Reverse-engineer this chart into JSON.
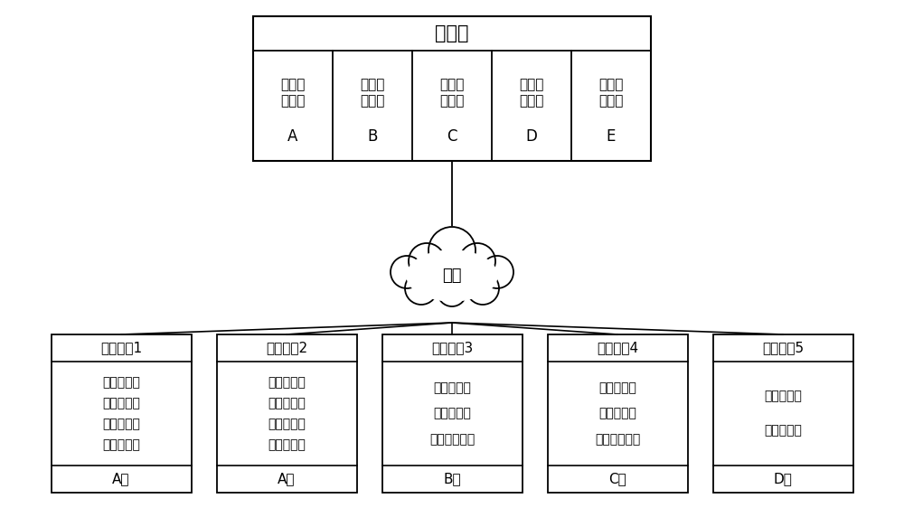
{
  "bg_color": "#ffffff",
  "line_color": "#000000",
  "box_fill": "#ffffff",
  "server_label": "服务器",
  "server_files": [
    {
      "lines": [
        "系统镜",
        "像文件",
        "A"
      ]
    },
    {
      "lines": [
        "系统镜",
        "像文件",
        "B"
      ]
    },
    {
      "lines": [
        "系统镜",
        "像文件",
        "C"
      ]
    },
    {
      "lines": [
        "系统镜",
        "像文件",
        "D"
      ]
    },
    {
      "lines": [
        "系统镜",
        "像文件",
        "E"
      ]
    }
  ],
  "network_label": "网络",
  "terminals": [
    {
      "title": "智能终端1",
      "modules": [
        "身份证模块",
        "诊疗卡模块",
        "银行卡模块",
        "医保卡模块"
      ],
      "type_label": "A型"
    },
    {
      "title": "智能终端2",
      "modules": [
        "身份证模块",
        "诊疗卡模块",
        "银行卡模块",
        "医保卡模块"
      ],
      "type_label": "A型"
    },
    {
      "title": "智能终端3",
      "modules": [
        "身份证模块",
        "诊疗卡模块",
        "胶片打印模块"
      ],
      "type_label": "B型"
    },
    {
      "title": "智能终端4",
      "modules": [
        "身份证模块",
        "诊疗卡模块",
        "纸张打印模块"
      ],
      "type_label": "C型"
    },
    {
      "title": "智能终端5",
      "modules": [
        "身份证模块",
        "诊疗卡模块"
      ],
      "type_label": "D型"
    }
  ],
  "figsize": [
    10.0,
    5.62
  ],
  "dpi": 100
}
